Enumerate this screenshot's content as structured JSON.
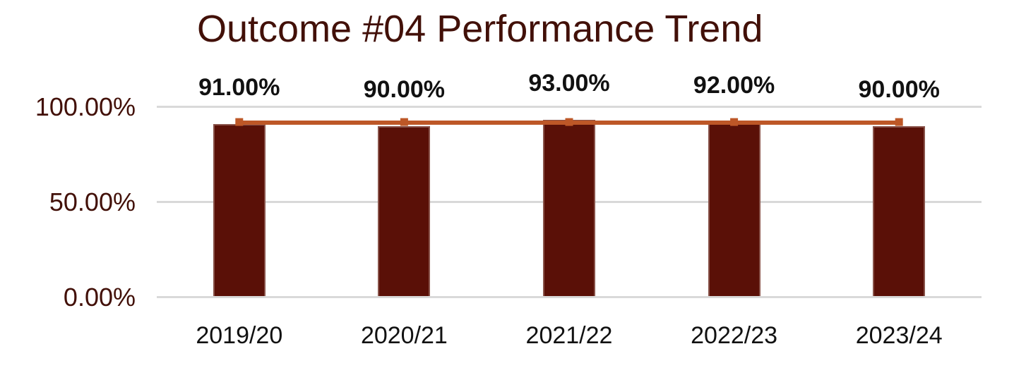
{
  "chart_data": {
    "type": "bar",
    "title": "Outcome #04 Performance Trend",
    "categories": [
      "2019/20",
      "2020/21",
      "2021/22",
      "2022/23",
      "2023/24"
    ],
    "series": [
      {
        "name": "outcome-performance-bars",
        "type": "bar",
        "values": [
          91,
          90,
          93,
          92,
          90
        ],
        "labels": [
          "91.00%",
          "90.00%",
          "93.00%",
          "92.00%",
          "90.00%"
        ],
        "color": "#5A1007"
      },
      {
        "name": "target-line",
        "type": "line",
        "values": [
          92,
          92,
          92,
          92,
          92
        ],
        "color": "#BD5727"
      }
    ],
    "xlabel": "",
    "ylabel": "",
    "y_axis": {
      "tick_labels": [
        "100.00%",
        "50.00%",
        "0.00%"
      ],
      "tick_values": [
        100,
        50,
        0
      ],
      "min": 0,
      "max": 100,
      "suffix": "%"
    },
    "grid": true,
    "legend": false,
    "colors": {
      "title": "#421008",
      "y_axis_labels": "#421008",
      "category_labels": "#111111",
      "data_labels": "#111111",
      "gridline": "#D9D9D9",
      "background": "#FFFFFF"
    }
  }
}
